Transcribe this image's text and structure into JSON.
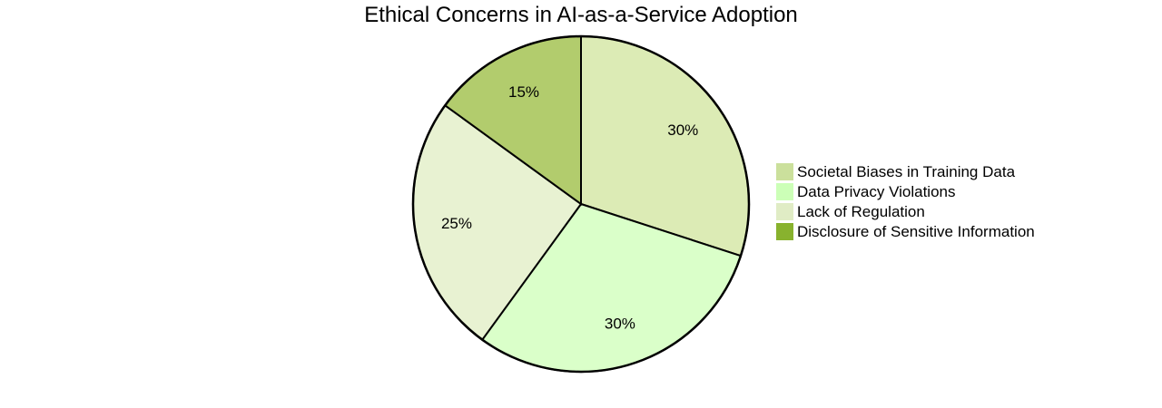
{
  "chart_data": {
    "type": "pie",
    "title": "Ethical Concerns in AI-as-a-Service Adoption",
    "slices": [
      {
        "label": "Societal Biases in Training Data",
        "value": 30,
        "display": "30%",
        "color": "#dcebb5"
      },
      {
        "label": "Data Privacy Violations",
        "value": 30,
        "display": "30%",
        "color": "#daffc9"
      },
      {
        "label": "Lack of Regulation",
        "value": 25,
        "display": "25%",
        "color": "#e8f2d2"
      },
      {
        "label": "Disclosure of Sensitive Information",
        "value": 15,
        "display": "15%",
        "color": "#b2cc6d"
      }
    ],
    "legend": {
      "placement": "right",
      "items": [
        {
          "label": "Societal Biases in Training Data",
          "color": "#cbe09c"
        },
        {
          "label": "Data Privacy Violations",
          "color": "#ccffb7"
        },
        {
          "label": "Lack of Regulation",
          "color": "#e0ecc5"
        },
        {
          "label": "Disclosure of Sensitive Information",
          "color": "#88b22e"
        }
      ]
    },
    "start_angle_deg": 0,
    "direction": "clockwise"
  }
}
